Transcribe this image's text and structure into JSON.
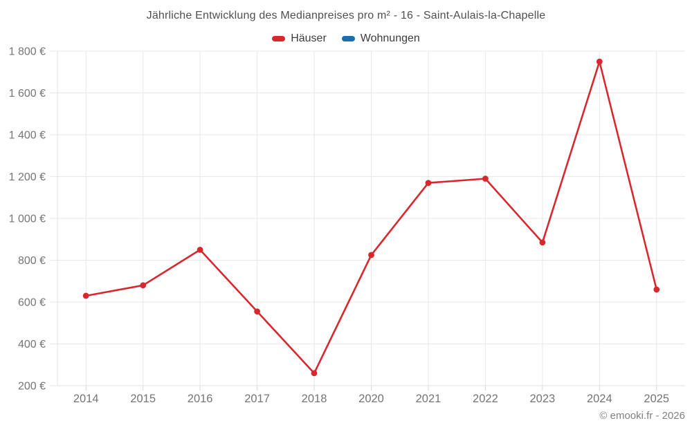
{
  "header": {
    "title": "Jährliche Entwicklung des Medianpreises pro m² - 16 - Saint-Aulais-la-Chapelle"
  },
  "legend": {
    "items": [
      {
        "label": "Häuser",
        "color": "#d7282d"
      },
      {
        "label": "Wohnungen",
        "color": "#1a70ad"
      }
    ]
  },
  "footer": {
    "copyright": "© emooki.fr - 2026"
  },
  "colors": {
    "grid": "#e8e8e8",
    "axis": "#e0e0e0",
    "tick": "#d7d7d7",
    "axis_label": "#757575"
  },
  "chart_data": {
    "type": "line",
    "title": "Jährliche Entwicklung des Medianpreises pro m² - 16 - Saint-Aulais-la-Chapelle",
    "categories": [
      "2014",
      "2015",
      "2016",
      "2017",
      "2018",
      "2020",
      "2021",
      "2022",
      "2023",
      "2024",
      "2025"
    ],
    "series": [
      {
        "name": "Häuser",
        "color": "#d7282d",
        "values": [
          630,
          680,
          850,
          555,
          260,
          825,
          1170,
          1190,
          885,
          1750,
          660
        ]
      },
      {
        "name": "Wohnungen",
        "color": "#1a70ad",
        "values": []
      }
    ],
    "xlabel": "",
    "ylabel": "",
    "ylim": [
      200,
      1800
    ],
    "ytick_step": 200,
    "ytick_suffix": " €",
    "grid": true,
    "legend_position": "top"
  }
}
